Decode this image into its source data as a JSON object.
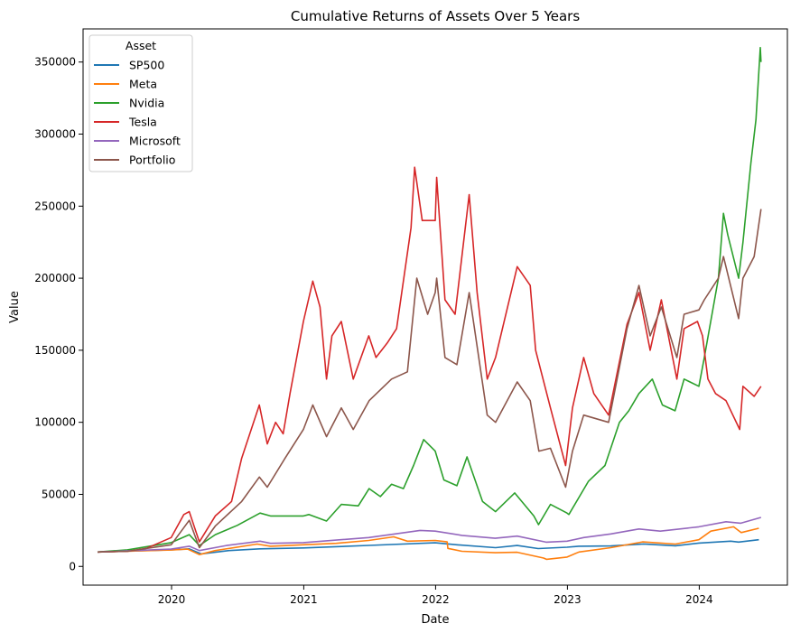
{
  "chart_data": {
    "type": "line",
    "title": "Cumulative Returns of Assets Over 5 Years",
    "xlabel": "Date",
    "ylabel": "Value",
    "xlim": [
      "2019-05-01",
      "2024-09-01"
    ],
    "ylim": [
      -13000,
      373000
    ],
    "x_ticks": [
      "2020-01-01",
      "2021-01-01",
      "2022-01-01",
      "2023-01-01",
      "2024-01-01"
    ],
    "x_tick_labels": [
      "2020",
      "2021",
      "2022",
      "2023",
      "2024"
    ],
    "y_ticks": [
      0,
      50000,
      100000,
      150000,
      200000,
      250000,
      300000,
      350000
    ],
    "y_tick_labels": [
      "0",
      "50000",
      "100000",
      "150000",
      "200000",
      "250000",
      "300000",
      "350000"
    ],
    "grid": false,
    "legend": {
      "title": "Asset",
      "placement": "top-left"
    },
    "series": [
      {
        "name": "SP500",
        "color": "#1f77b4",
        "points": [
          [
            "2019-06-10",
            10000
          ],
          [
            "2019-12-31",
            11500
          ],
          [
            "2020-02-19",
            12200
          ],
          [
            "2020-03-23",
            8700
          ],
          [
            "2020-06-08",
            11000
          ],
          [
            "2020-09-01",
            12200
          ],
          [
            "2020-12-31",
            12800
          ],
          [
            "2021-06-30",
            14600
          ],
          [
            "2021-12-31",
            16400
          ],
          [
            "2022-03-01",
            15000
          ],
          [
            "2022-06-16",
            13000
          ],
          [
            "2022-08-15",
            14500
          ],
          [
            "2022-10-12",
            12400
          ],
          [
            "2022-12-31",
            13300
          ],
          [
            "2023-02-01",
            14000
          ],
          [
            "2023-05-01",
            14200
          ],
          [
            "2023-07-31",
            15600
          ],
          [
            "2023-10-27",
            14300
          ],
          [
            "2023-12-31",
            16200
          ],
          [
            "2024-03-28",
            17500
          ],
          [
            "2024-04-19",
            16900
          ],
          [
            "2024-06-14",
            18500
          ]
        ]
      },
      {
        "name": "Meta",
        "color": "#ff7f0e",
        "points": [
          [
            "2019-06-10",
            10000
          ],
          [
            "2019-09-01",
            10500
          ],
          [
            "2019-12-31",
            11400
          ],
          [
            "2020-02-15",
            12000
          ],
          [
            "2020-03-18",
            8200
          ],
          [
            "2020-05-01",
            11000
          ],
          [
            "2020-08-25",
            15500
          ],
          [
            "2020-10-01",
            14000
          ],
          [
            "2020-12-31",
            15000
          ],
          [
            "2021-04-01",
            16000
          ],
          [
            "2021-06-30",
            18000
          ],
          [
            "2021-09-07",
            20500
          ],
          [
            "2021-10-15",
            17500
          ],
          [
            "2021-12-31",
            18000
          ],
          [
            "2022-02-02",
            17000
          ],
          [
            "2022-02-04",
            12500
          ],
          [
            "2022-03-15",
            10500
          ],
          [
            "2022-06-15",
            9500
          ],
          [
            "2022-08-15",
            9800
          ],
          [
            "2022-10-27",
            5800
          ],
          [
            "2022-11-04",
            4900
          ],
          [
            "2022-12-31",
            6500
          ],
          [
            "2023-02-02",
            10000
          ],
          [
            "2023-05-01",
            13000
          ],
          [
            "2023-07-28",
            17000
          ],
          [
            "2023-10-27",
            15500
          ],
          [
            "2023-12-31",
            18500
          ],
          [
            "2024-02-02",
            24500
          ],
          [
            "2024-04-05",
            27500
          ],
          [
            "2024-04-26",
            23500
          ],
          [
            "2024-06-14",
            26500
          ]
        ]
      },
      {
        "name": "Nvidia",
        "color": "#2ca02c",
        "points": [
          [
            "2019-06-10",
            10000
          ],
          [
            "2019-09-01",
            11500
          ],
          [
            "2019-12-31",
            16500
          ],
          [
            "2020-02-19",
            22000
          ],
          [
            "2020-03-18",
            14500
          ],
          [
            "2020-05-01",
            22000
          ],
          [
            "2020-07-01",
            28500
          ],
          [
            "2020-09-02",
            37000
          ],
          [
            "2020-10-01",
            35000
          ],
          [
            "2020-12-31",
            35000
          ],
          [
            "2021-01-15",
            36000
          ],
          [
            "2021-03-05",
            31500
          ],
          [
            "2021-04-15",
            43000
          ],
          [
            "2021-06-01",
            42000
          ],
          [
            "2021-07-01",
            54000
          ],
          [
            "2021-08-01",
            48500
          ],
          [
            "2021-09-01",
            57000
          ],
          [
            "2021-10-04",
            54000
          ],
          [
            "2021-11-01",
            70000
          ],
          [
            "2021-11-29",
            88000
          ],
          [
            "2021-12-31",
            80000
          ],
          [
            "2022-01-24",
            60000
          ],
          [
            "2022-03-01",
            56000
          ],
          [
            "2022-03-29",
            76000
          ],
          [
            "2022-05-11",
            45000
          ],
          [
            "2022-06-16",
            38000
          ],
          [
            "2022-08-08",
            51000
          ],
          [
            "2022-09-30",
            35000
          ],
          [
            "2022-10-13",
            29000
          ],
          [
            "2022-11-15",
            43000
          ],
          [
            "2022-12-31",
            37000
          ],
          [
            "2023-01-05",
            36000
          ],
          [
            "2023-02-28",
            59000
          ],
          [
            "2023-04-15",
            70000
          ],
          [
            "2023-05-25",
            100000
          ],
          [
            "2023-06-20",
            108000
          ],
          [
            "2023-07-18",
            120000
          ],
          [
            "2023-08-24",
            130000
          ],
          [
            "2023-09-21",
            112000
          ],
          [
            "2023-10-26",
            108000
          ],
          [
            "2023-11-20",
            130000
          ],
          [
            "2023-12-31",
            125000
          ],
          [
            "2024-01-15",
            145000
          ],
          [
            "2024-02-23",
            200000
          ],
          [
            "2024-03-08",
            245000
          ],
          [
            "2024-03-20",
            230000
          ],
          [
            "2024-04-19",
            200000
          ],
          [
            "2024-05-01",
            225000
          ],
          [
            "2024-05-23",
            280000
          ],
          [
            "2024-06-06",
            310000
          ],
          [
            "2024-06-18",
            360000
          ],
          [
            "2024-06-20",
            350000
          ]
        ]
      },
      {
        "name": "Tesla",
        "color": "#d62728",
        "points": [
          [
            "2019-06-10",
            10000
          ],
          [
            "2019-09-01",
            10500
          ],
          [
            "2019-10-23",
            12500
          ],
          [
            "2019-12-31",
            20000
          ],
          [
            "2020-02-04",
            36000
          ],
          [
            "2020-02-19",
            38000
          ],
          [
            "2020-03-18",
            17000
          ],
          [
            "2020-05-01",
            35000
          ],
          [
            "2020-06-15",
            45000
          ],
          [
            "2020-07-13",
            75000
          ],
          [
            "2020-08-31",
            112000
          ],
          [
            "2020-09-22",
            85000
          ],
          [
            "2020-10-15",
            100000
          ],
          [
            "2020-11-05",
            92000
          ],
          [
            "2020-11-24",
            120000
          ],
          [
            "2020-12-31",
            170000
          ],
          [
            "2021-01-26",
            198000
          ],
          [
            "2021-02-15",
            180000
          ],
          [
            "2021-03-05",
            130000
          ],
          [
            "2021-03-20",
            160000
          ],
          [
            "2021-04-15",
            170000
          ],
          [
            "2021-05-18",
            130000
          ],
          [
            "2021-06-30",
            160000
          ],
          [
            "2021-07-20",
            145000
          ],
          [
            "2021-08-20",
            155000
          ],
          [
            "2021-09-15",
            165000
          ],
          [
            "2021-10-25",
            235000
          ],
          [
            "2021-11-04",
            277000
          ],
          [
            "2021-11-25",
            240000
          ],
          [
            "2021-12-31",
            240000
          ],
          [
            "2022-01-04",
            270000
          ],
          [
            "2022-01-27",
            185000
          ],
          [
            "2022-02-24",
            175000
          ],
          [
            "2022-04-04",
            258000
          ],
          [
            "2022-04-26",
            190000
          ],
          [
            "2022-05-24",
            130000
          ],
          [
            "2022-06-16",
            145000
          ],
          [
            "2022-08-15",
            208000
          ],
          [
            "2022-09-20",
            195000
          ],
          [
            "2022-10-05",
            150000
          ],
          [
            "2022-11-15",
            110000
          ],
          [
            "2022-12-27",
            70000
          ],
          [
            "2023-01-15",
            110000
          ],
          [
            "2023-02-15",
            145000
          ],
          [
            "2023-03-15",
            120000
          ],
          [
            "2023-04-25",
            105000
          ],
          [
            "2023-06-15",
            168000
          ],
          [
            "2023-07-18",
            190000
          ],
          [
            "2023-08-18",
            150000
          ],
          [
            "2023-09-18",
            185000
          ],
          [
            "2023-10-31",
            130000
          ],
          [
            "2023-11-20",
            165000
          ],
          [
            "2023-12-27",
            170000
          ],
          [
            "2024-01-10",
            160000
          ],
          [
            "2024-01-25",
            130000
          ],
          [
            "2024-02-15",
            120000
          ],
          [
            "2024-03-15",
            115000
          ],
          [
            "2024-04-22",
            95000
          ],
          [
            "2024-05-01",
            125000
          ],
          [
            "2024-06-01",
            118000
          ],
          [
            "2024-06-20",
            125000
          ]
        ]
      },
      {
        "name": "Microsoft",
        "color": "#9467bd",
        "points": [
          [
            "2019-06-10",
            10000
          ],
          [
            "2019-12-31",
            12000
          ],
          [
            "2020-02-19",
            14000
          ],
          [
            "2020-03-18",
            11000
          ],
          [
            "2020-06-01",
            14500
          ],
          [
            "2020-09-02",
            17500
          ],
          [
            "2020-10-01",
            16000
          ],
          [
            "2020-12-31",
            16500
          ],
          [
            "2021-06-30",
            20000
          ],
          [
            "2021-11-19",
            25000
          ],
          [
            "2021-12-31",
            24500
          ],
          [
            "2022-03-15",
            21500
          ],
          [
            "2022-06-15",
            19500
          ],
          [
            "2022-08-15",
            21000
          ],
          [
            "2022-11-03",
            16800
          ],
          [
            "2022-12-31",
            17500
          ],
          [
            "2023-02-15",
            20000
          ],
          [
            "2023-05-01",
            22500
          ],
          [
            "2023-07-18",
            26000
          ],
          [
            "2023-09-15",
            24500
          ],
          [
            "2023-12-31",
            27500
          ],
          [
            "2024-03-15",
            31000
          ],
          [
            "2024-04-25",
            30000
          ],
          [
            "2024-06-20",
            34000
          ]
        ]
      },
      {
        "name": "Portfolio",
        "color": "#8c564b",
        "points": [
          [
            "2019-06-10",
            10000
          ],
          [
            "2019-09-01",
            10500
          ],
          [
            "2019-12-31",
            15000
          ],
          [
            "2020-02-19",
            32000
          ],
          [
            "2020-03-18",
            13000
          ],
          [
            "2020-05-01",
            28000
          ],
          [
            "2020-07-13",
            45000
          ],
          [
            "2020-08-31",
            62000
          ],
          [
            "2020-09-22",
            55000
          ],
          [
            "2020-11-10",
            75000
          ],
          [
            "2020-12-31",
            95000
          ],
          [
            "2021-01-26",
            112000
          ],
          [
            "2021-03-05",
            90000
          ],
          [
            "2021-04-15",
            110000
          ],
          [
            "2021-05-18",
            95000
          ],
          [
            "2021-07-01",
            115000
          ],
          [
            "2021-09-01",
            130000
          ],
          [
            "2021-10-15",
            135000
          ],
          [
            "2021-11-10",
            200000
          ],
          [
            "2021-12-10",
            175000
          ],
          [
            "2021-12-31",
            190000
          ],
          [
            "2022-01-04",
            200000
          ],
          [
            "2022-01-27",
            145000
          ],
          [
            "2022-03-01",
            140000
          ],
          [
            "2022-04-04",
            190000
          ],
          [
            "2022-05-24",
            105000
          ],
          [
            "2022-06-16",
            100000
          ],
          [
            "2022-08-15",
            128000
          ],
          [
            "2022-09-20",
            115000
          ],
          [
            "2022-10-14",
            80000
          ],
          [
            "2022-11-15",
            82000
          ],
          [
            "2022-12-27",
            55000
          ],
          [
            "2023-01-15",
            80000
          ],
          [
            "2023-02-15",
            105000
          ],
          [
            "2023-04-25",
            100000
          ],
          [
            "2023-06-15",
            165000
          ],
          [
            "2023-07-18",
            195000
          ],
          [
            "2023-08-18",
            160000
          ],
          [
            "2023-09-18",
            180000
          ],
          [
            "2023-10-31",
            145000
          ],
          [
            "2023-11-20",
            175000
          ],
          [
            "2023-12-31",
            178000
          ],
          [
            "2024-01-15",
            185000
          ],
          [
            "2024-02-23",
            200000
          ],
          [
            "2024-03-08",
            215000
          ],
          [
            "2024-04-19",
            172000
          ],
          [
            "2024-05-01",
            200000
          ],
          [
            "2024-06-01",
            215000
          ],
          [
            "2024-06-20",
            248000
          ]
        ]
      }
    ]
  }
}
